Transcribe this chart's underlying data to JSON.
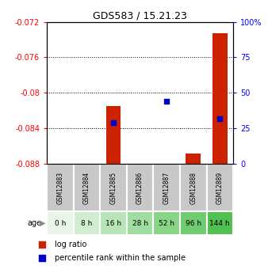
{
  "title": "GDS583 / 15.21.23",
  "samples": [
    "GSM12883",
    "GSM12884",
    "GSM12885",
    "GSM12886",
    "GSM12887",
    "GSM12888",
    "GSM12889"
  ],
  "age_labels": [
    "0 h",
    "8 h",
    "16 h",
    "28 h",
    "52 h",
    "96 h",
    "144 h"
  ],
  "age_colors": [
    "#e8f5e8",
    "#d0edd0",
    "#b8e5b8",
    "#a0dda0",
    "#88d588",
    "#70cc70",
    "#50c050"
  ],
  "sample_box_color": "#c8c8c8",
  "log_ratio": [
    null,
    null,
    -0.0815,
    null,
    null,
    -0.0868,
    -0.0733
  ],
  "percentile_rank": [
    null,
    null,
    29,
    null,
    44,
    null,
    32
  ],
  "ylim_left": [
    -0.088,
    -0.072
  ],
  "ylim_right": [
    0,
    100
  ],
  "yticks_left": [
    -0.088,
    -0.084,
    -0.08,
    -0.076,
    -0.072
  ],
  "yticks_right": [
    0,
    25,
    50,
    75,
    100
  ],
  "ytick_labels_left": [
    "-0.088",
    "-0.084",
    "-0.08",
    "-0.076",
    "-0.072"
  ],
  "ytick_labels_right": [
    "0",
    "25",
    "50",
    "75",
    "100%"
  ],
  "grid_lines": [
    -0.076,
    -0.08,
    -0.084
  ],
  "bar_color": "#cc2200",
  "dot_color": "#0000cc",
  "bar_width": 0.55,
  "dot_size": 25,
  "bar_base": -0.088
}
